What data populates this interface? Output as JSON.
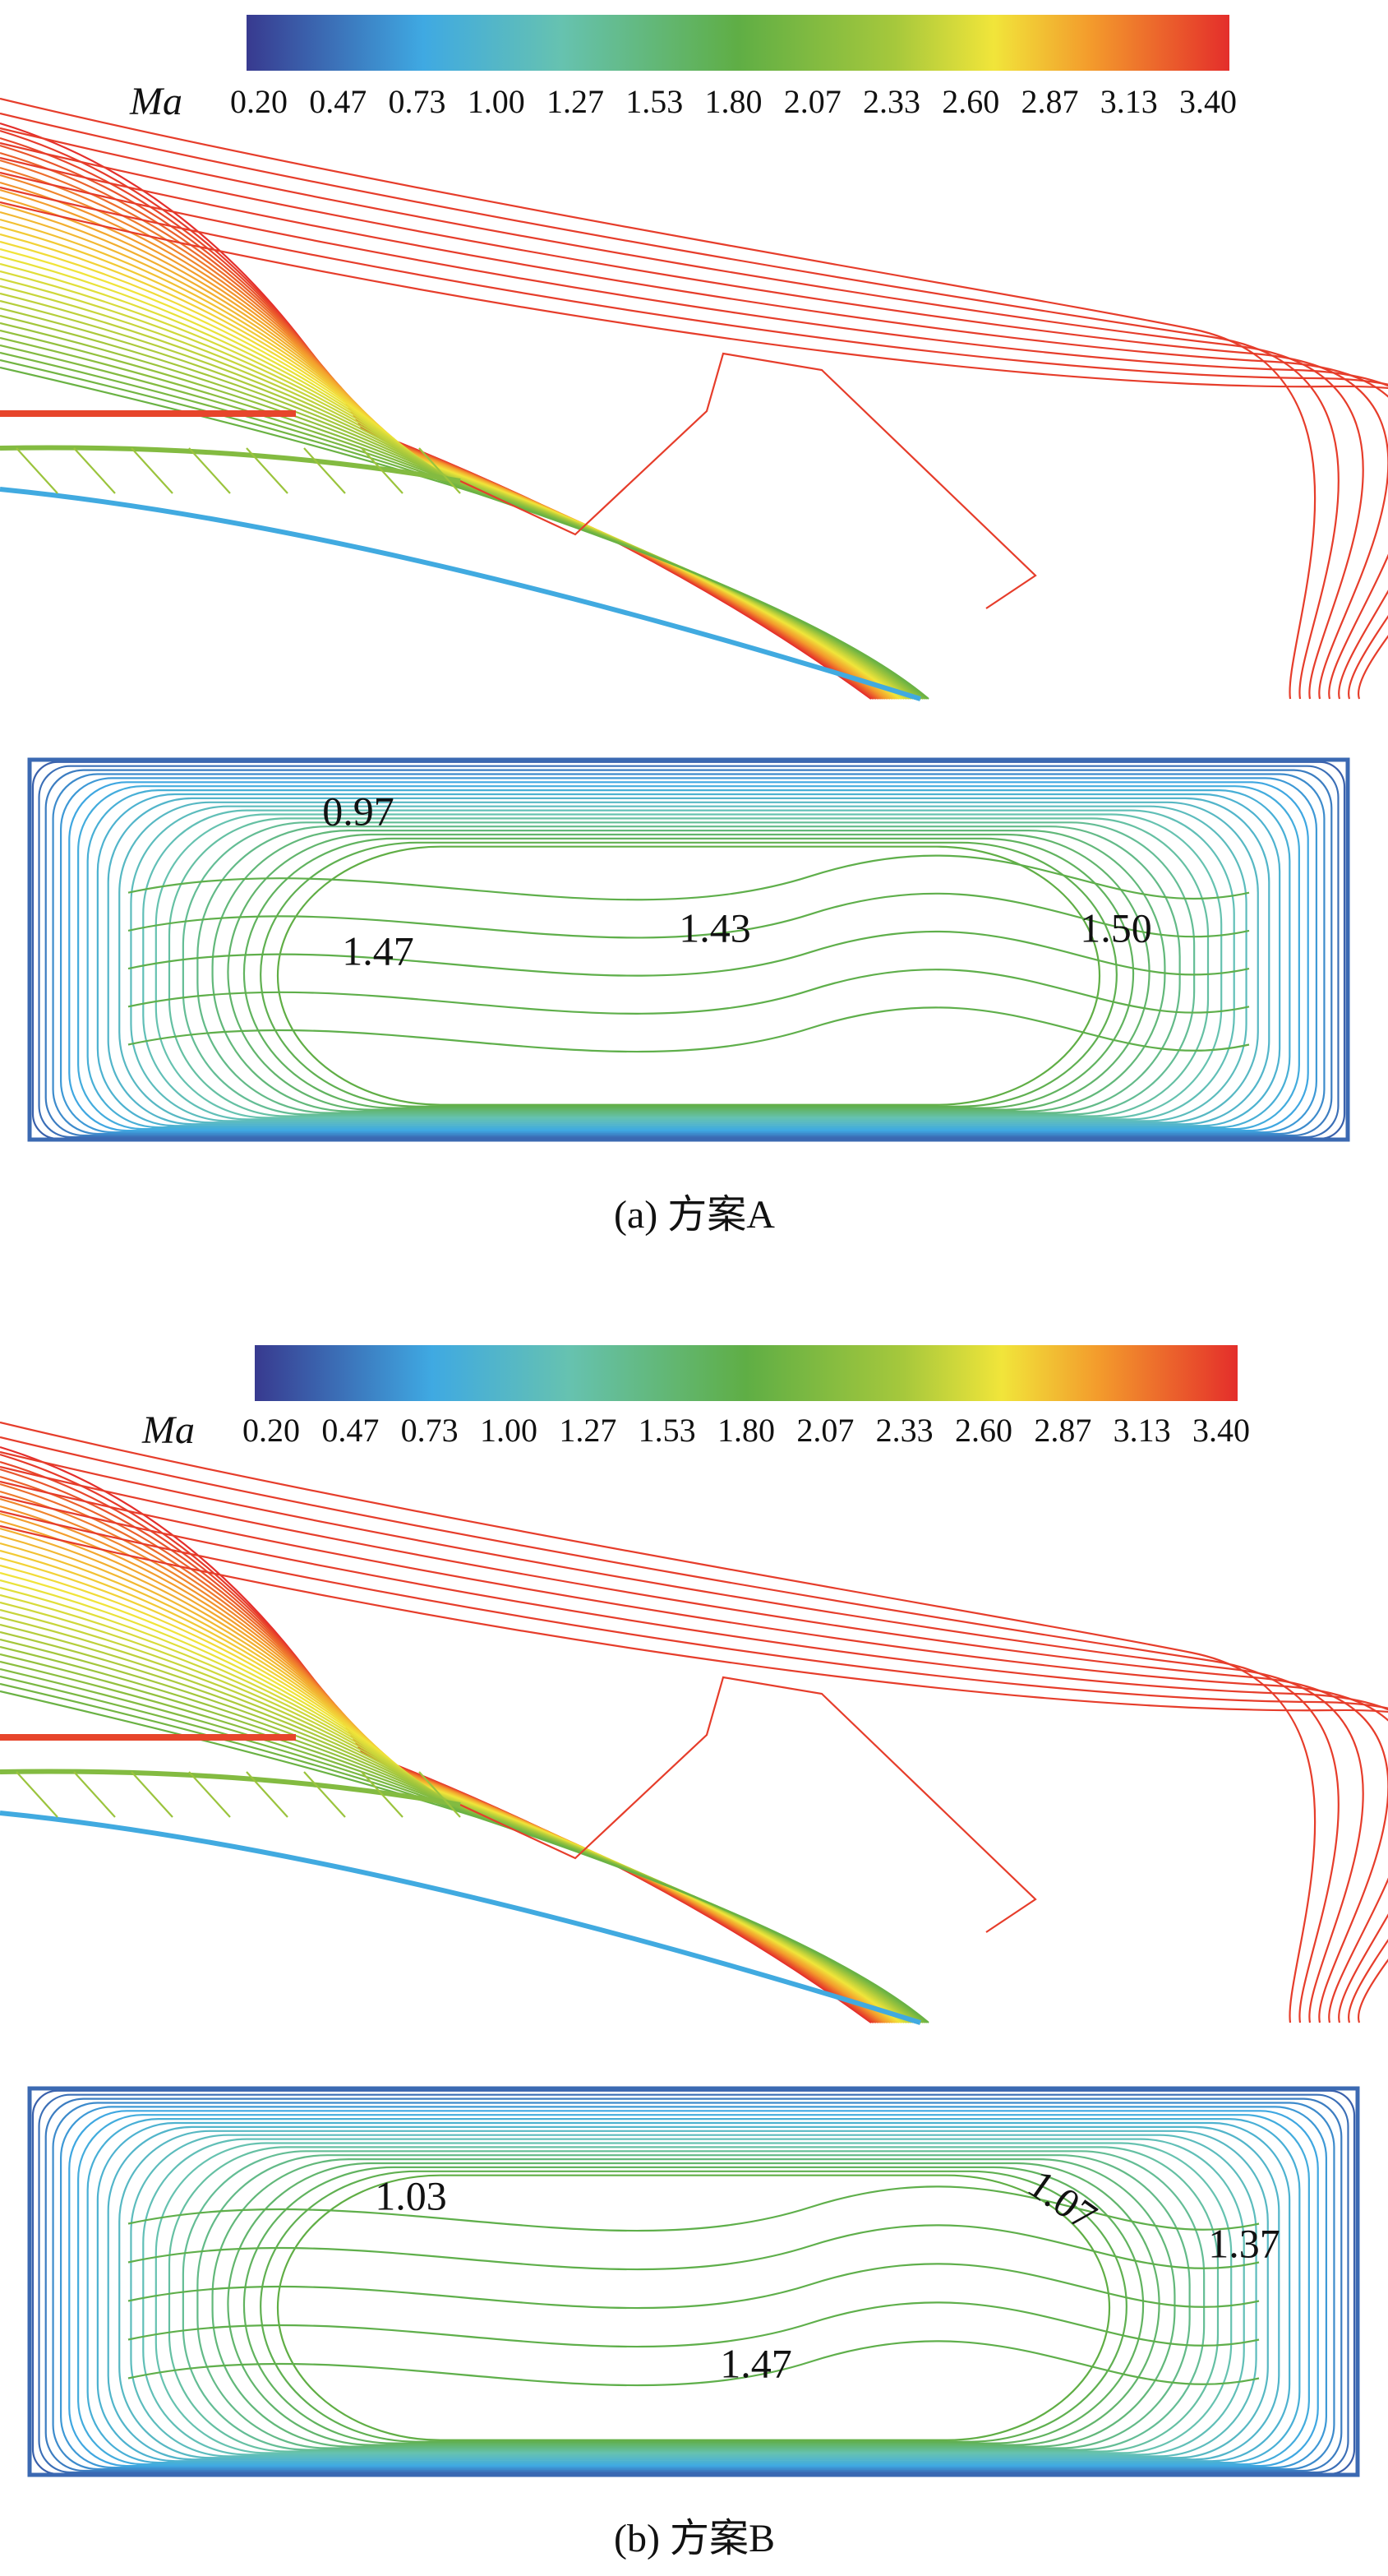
{
  "panels": [
    {
      "colorbar": {
        "label": "Ma",
        "ticks": [
          "0.20",
          "0.47",
          "0.73",
          "1.00",
          "1.27",
          "1.53",
          "1.80",
          "2.07",
          "2.33",
          "2.60",
          "2.87",
          "3.13",
          "3.40"
        ]
      },
      "annotations": [
        "0.97",
        "1.47",
        "1.43",
        "1.50"
      ],
      "caption": "(a) 方案A"
    },
    {
      "colorbar": {
        "label": "Ma",
        "ticks": [
          "0.20",
          "0.47",
          "0.73",
          "1.00",
          "1.27",
          "1.53",
          "1.80",
          "2.07",
          "2.33",
          "2.60",
          "2.87",
          "3.13",
          "3.40"
        ]
      },
      "annotations": [
        "1.03",
        "1.07",
        "1.37",
        "1.47"
      ],
      "caption": "(b) 方案B"
    }
  ]
}
